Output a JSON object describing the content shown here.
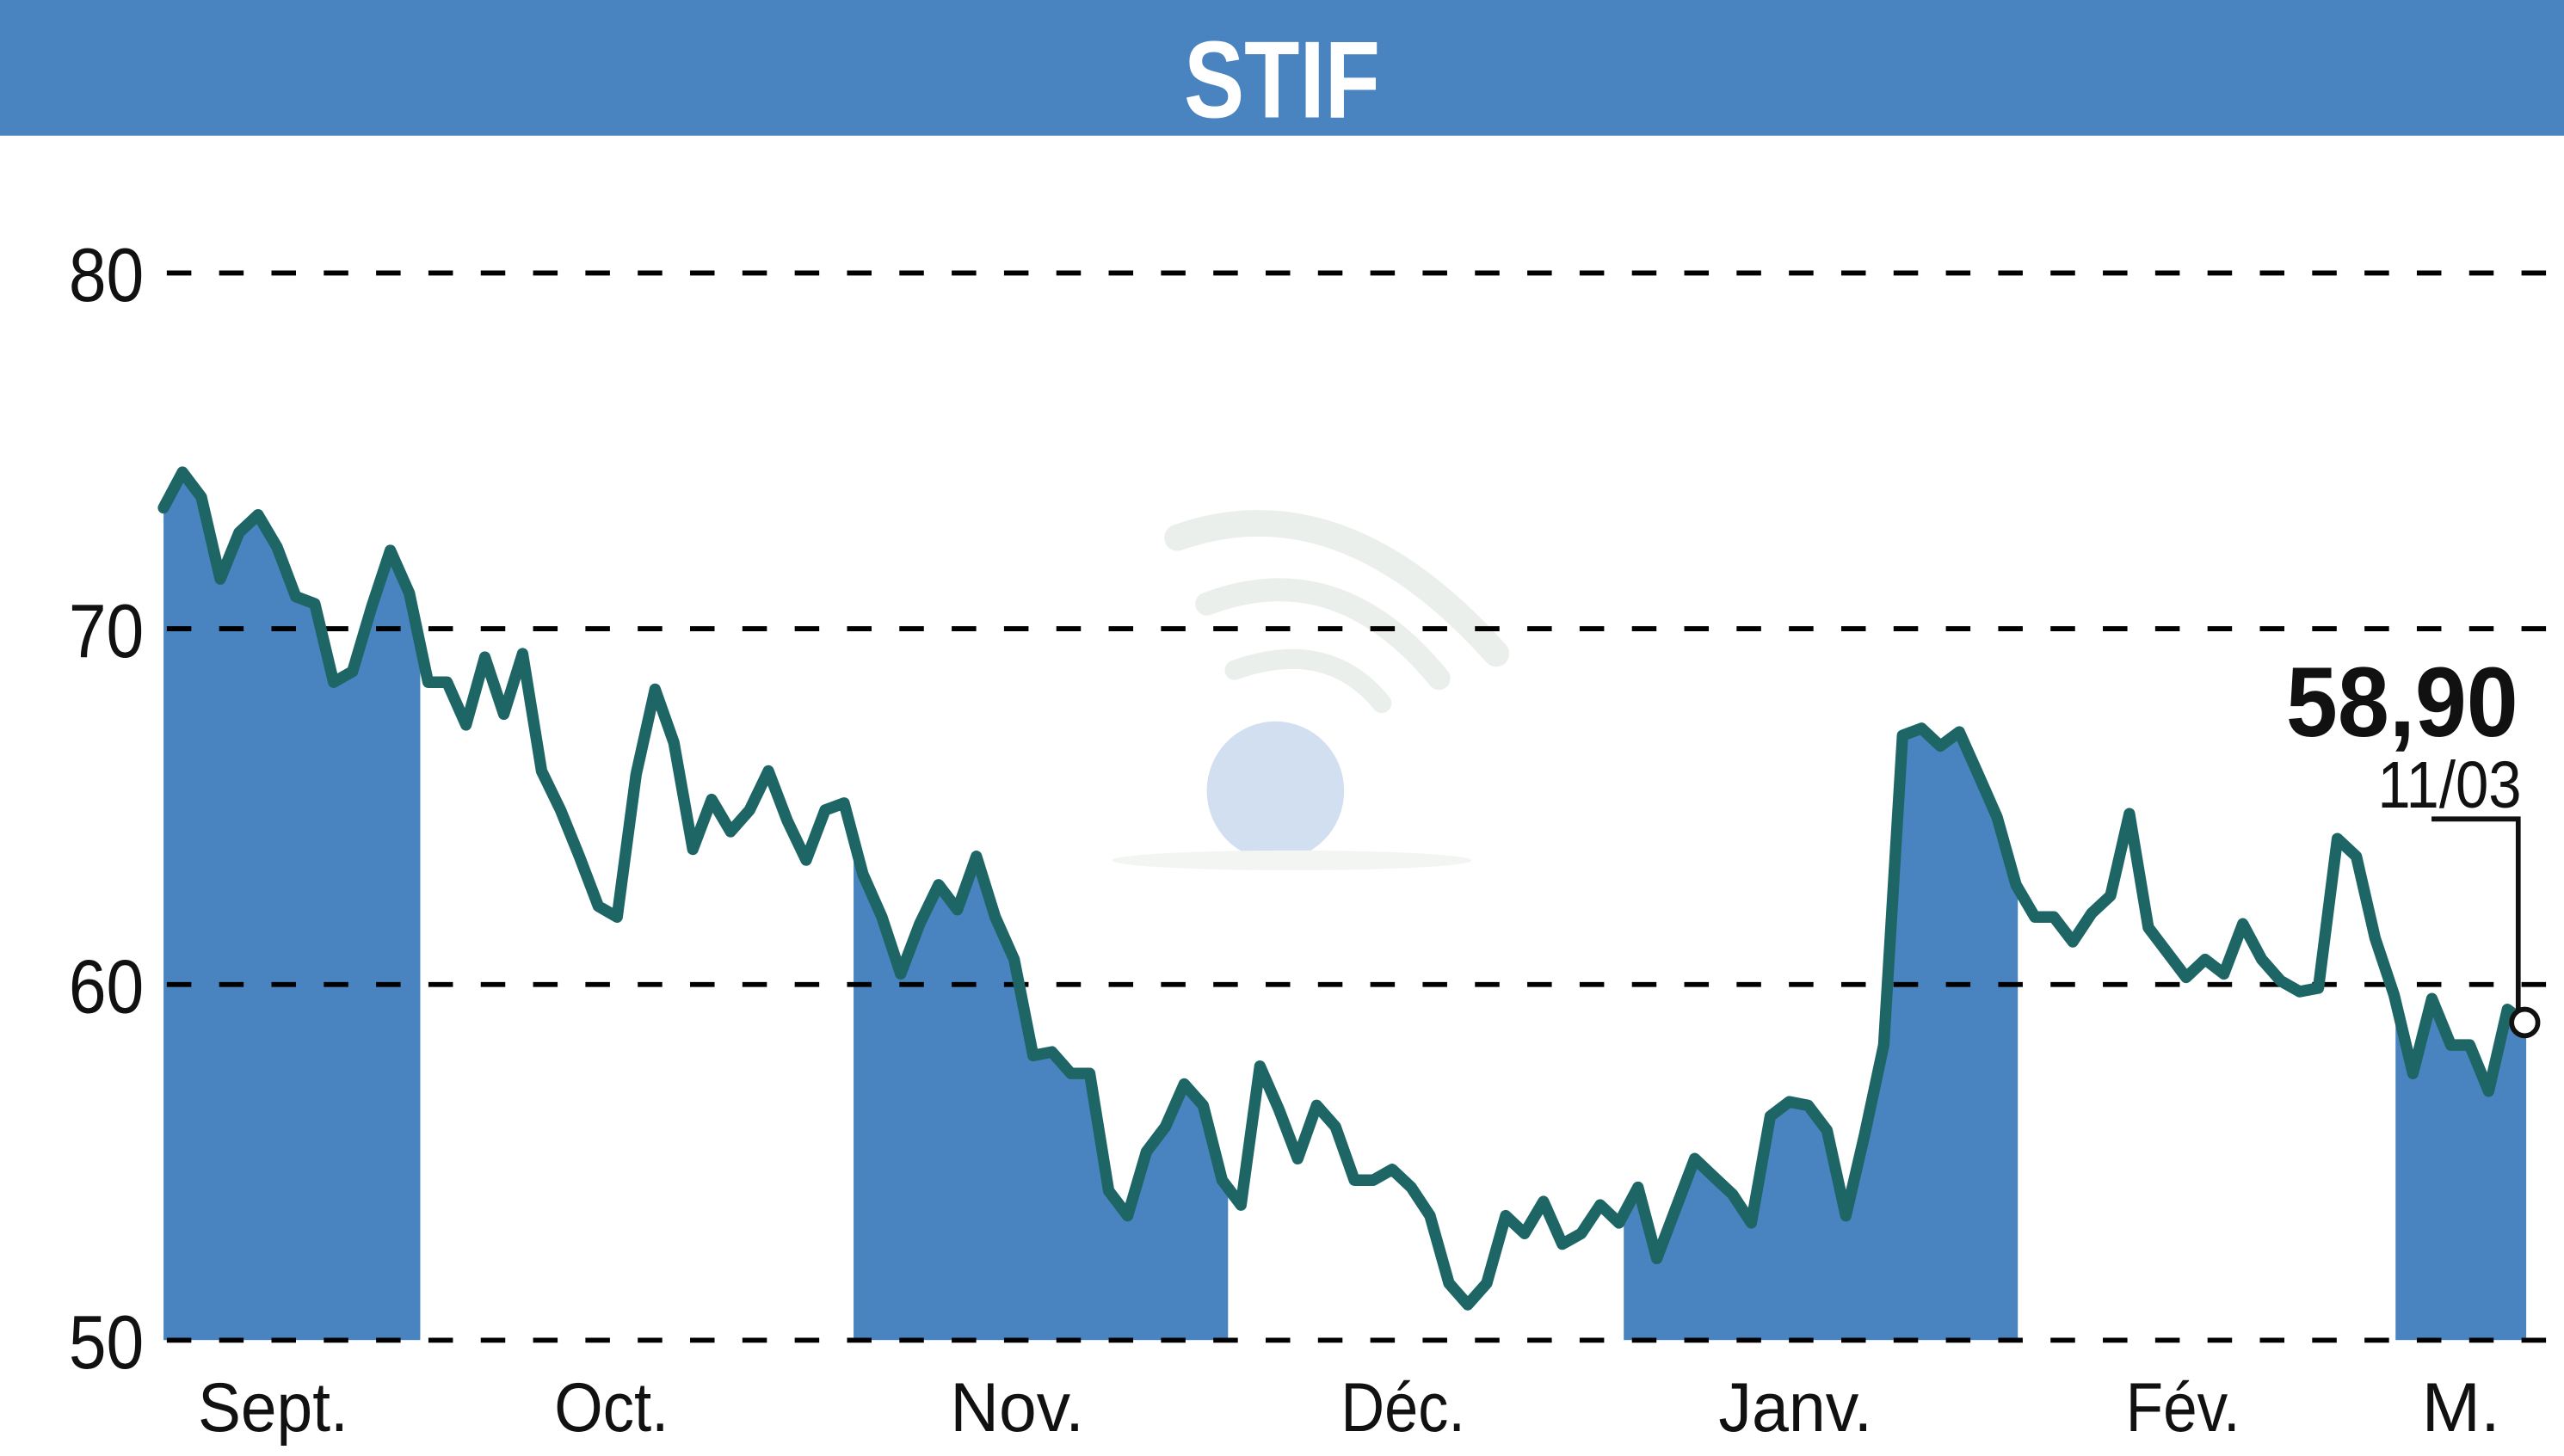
{
  "header": {
    "title": "STIF",
    "background": "#4a84c0"
  },
  "colors": {
    "line": "#1e6666",
    "fill": "#4a84c0",
    "grid": "#000000"
  },
  "annotation": {
    "price": "58,90",
    "date": "11/03"
  },
  "chart_data": {
    "type": "line",
    "title": "STIF",
    "xlabel": "",
    "ylabel": "",
    "ylim": [
      50,
      80
    ],
    "yticks": [
      50,
      60,
      70,
      80
    ],
    "grid": "horizontal dashed",
    "categories": [
      "Sept.",
      "Oct.",
      "Nov.",
      "Déc.",
      "Janv.",
      "Fév.",
      "M."
    ],
    "shaded_months": [
      "Sept.",
      "Nov.",
      "Janv.",
      "M."
    ],
    "last_value": 58.9,
    "last_date": "11/03",
    "series": [
      {
        "name": "STIF",
        "values": [
          73.4,
          74.4,
          73.7,
          71.4,
          72.7,
          73.2,
          72.3,
          70.9,
          70.7,
          68.5,
          68.8,
          70.6,
          72.2,
          71.0,
          68.5,
          68.5,
          67.3,
          69.2,
          67.6,
          69.3,
          66.0,
          64.9,
          63.6,
          62.2,
          61.9,
          65.9,
          68.3,
          66.8,
          63.8,
          65.2,
          64.3,
          64.9,
          66.0,
          64.6,
          63.5,
          64.9,
          65.1,
          63.1,
          61.9,
          60.3,
          61.7,
          62.8,
          62.1,
          63.6,
          61.9,
          60.7,
          58.0,
          58.1,
          57.5,
          57.5,
          54.2,
          53.5,
          55.3,
          56.0,
          57.2,
          56.6,
          54.5,
          53.8,
          57.7,
          56.5,
          55.1,
          56.6,
          56.0,
          54.5,
          54.5,
          54.8,
          54.3,
          53.5,
          51.6,
          51.0,
          51.6,
          53.5,
          53.0,
          53.9,
          52.7,
          53.0,
          53.8,
          53.3,
          54.3,
          52.3,
          53.7,
          55.1,
          54.6,
          54.1,
          53.3,
          56.3,
          56.7,
          56.6,
          55.9,
          53.5,
          55.8,
          58.3,
          67.0,
          67.2,
          66.7,
          67.1,
          65.9,
          64.7,
          62.8,
          61.9,
          61.9,
          61.2,
          62.0,
          62.5,
          64.8,
          61.6,
          60.9,
          60.2,
          60.7,
          60.3,
          61.7,
          60.7,
          60.1,
          59.8,
          59.9,
          64.1,
          63.6,
          61.3,
          59.7,
          57.5,
          59.6,
          58.3,
          58.3,
          57.0,
          59.3,
          58.9
        ]
      }
    ]
  }
}
